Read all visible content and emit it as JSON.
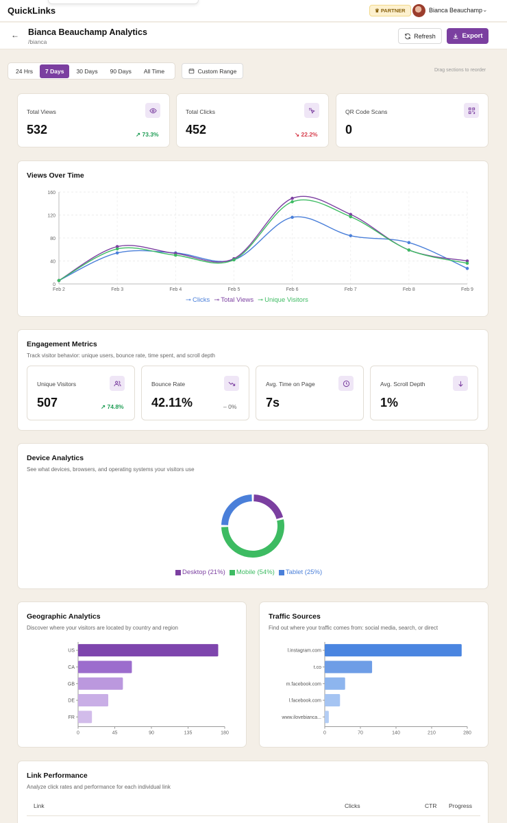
{
  "app": {
    "brand": "QuickLinks",
    "partner_badge": "PARTNER",
    "user_name": "Bianca Beauchamp"
  },
  "header": {
    "title": "Bianca Beauchamp Analytics",
    "subtitle": "/bianca",
    "refresh_label": "Refresh",
    "export_label": "Export"
  },
  "range": {
    "tabs": [
      "24 Hrs",
      "7 Days",
      "30 Days",
      "90 Days",
      "All Time"
    ],
    "active": "7 Days",
    "custom_label": "Custom Range",
    "drag_hint": "Drag sections to reorder"
  },
  "stats": [
    {
      "label": "Total Views",
      "value": "532",
      "trend": "73.3%",
      "direction": "up",
      "icon": "eye-icon"
    },
    {
      "label": "Total Clicks",
      "value": "452",
      "trend": "22.2%",
      "direction": "down",
      "icon": "cursor-click-icon"
    },
    {
      "label": "QR Code Scans",
      "value": "0",
      "icon": "qr-code-icon"
    }
  ],
  "views_over_time": {
    "title": "Views Over Time"
  },
  "engagement": {
    "title": "Engagement Metrics",
    "description": "Track visitor behavior: unique users, bounce rate, time spent, and scroll depth",
    "cards": [
      {
        "label": "Unique Visitors",
        "value": "507",
        "trend": "74.8%",
        "direction": "up",
        "icon": "users-icon"
      },
      {
        "label": "Bounce Rate",
        "value": "42.11%",
        "trend": "0%",
        "direction": "flat",
        "icon": "trending-down-icon"
      },
      {
        "label": "Avg. Time on Page",
        "value": "7s",
        "icon": "clock-icon"
      },
      {
        "label": "Avg. Scroll Depth",
        "value": "1%",
        "icon": "arrow-down-icon"
      }
    ]
  },
  "device": {
    "title": "Device Analytics",
    "description": "See what devices, browsers, and operating systems your visitors use",
    "legend": [
      "Desktop (21%)",
      "Mobile (54%)",
      "Tablet (25%)"
    ]
  },
  "geo": {
    "title": "Geographic Analytics",
    "description": "Discover where your visitors are located by country and region"
  },
  "traffic": {
    "title": "Traffic Sources",
    "description": "Find out where your traffic comes from: social media, search, or direct"
  },
  "links": {
    "title": "Link Performance",
    "description": "Analyze click rates and performance for each individual link",
    "columns": [
      "Link",
      "Clicks",
      "CTR",
      "Progress"
    ]
  },
  "colors": {
    "accent": "#7b3fa0",
    "clicks": "#4a7fd9",
    "views": "#7b3fa0",
    "unique": "#3dbb62"
  },
  "chart_data": [
    {
      "type": "line",
      "title": "Views Over Time",
      "x": [
        "Feb 2",
        "Feb 3",
        "Feb 4",
        "Feb 5",
        "Feb 6",
        "Feb 7",
        "Feb 8",
        "Feb 9"
      ],
      "ylim": [
        0,
        160
      ],
      "yticks": [
        0,
        40,
        80,
        120,
        160
      ],
      "grid": true,
      "legend_position": "bottom",
      "series": [
        {
          "name": "Clicks",
          "color": "#4a7fd9",
          "values": [
            6,
            54,
            54,
            42,
            116,
            84,
            72,
            27
          ]
        },
        {
          "name": "Total Views",
          "color": "#7b3fa0",
          "values": [
            6,
            65,
            53,
            44,
            149,
            121,
            59,
            40
          ]
        },
        {
          "name": "Unique Visitors",
          "color": "#3dbb62",
          "values": [
            6,
            61,
            50,
            42,
            143,
            117,
            59,
            36
          ]
        }
      ]
    },
    {
      "type": "pie",
      "title": "Device Analytics",
      "categories": [
        "Desktop",
        "Mobile",
        "Tablet"
      ],
      "values": [
        21,
        54,
        25
      ],
      "colors": [
        "#7b3fa0",
        "#3dbb62",
        "#4a7fd9"
      ],
      "legend_position": "bottom"
    },
    {
      "type": "bar",
      "title": "Geographic Analytics",
      "orientation": "horizontal",
      "categories": [
        "US",
        "CA",
        "GB",
        "DE",
        "FR"
      ],
      "values": [
        172,
        66,
        55,
        37,
        17
      ],
      "colors": [
        "#7e45ad",
        "#9c6dcd",
        "#bb98de",
        "#c9aee6",
        "#d2bcea"
      ],
      "xlim": [
        0,
        180
      ],
      "xticks": [
        0,
        45,
        90,
        135,
        180
      ]
    },
    {
      "type": "bar",
      "title": "Traffic Sources",
      "orientation": "horizontal",
      "categories": [
        "l.instagram.com",
        "t.co",
        "m.facebook.com",
        "l.facebook.com",
        "www.ilovebianca..."
      ],
      "values": [
        269,
        93,
        40,
        30,
        8
      ],
      "colors": [
        "#4a85e0",
        "#6e9de6",
        "#8db5ee",
        "#a5c4f2",
        "#b3cdf4"
      ],
      "xlim": [
        0,
        280
      ],
      "xticks": [
        0,
        70,
        140,
        210,
        280
      ]
    }
  ]
}
